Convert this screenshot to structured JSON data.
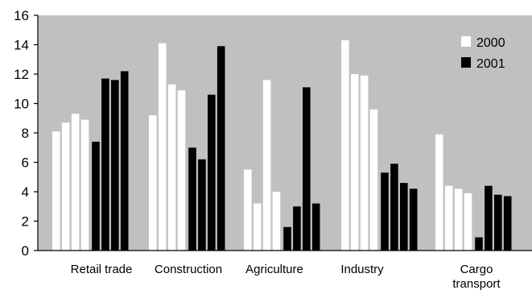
{
  "chart_data": {
    "type": "bar",
    "title": "",
    "xlabel": "",
    "ylabel": "",
    "ylim": [
      0,
      16
    ],
    "yticks": [
      0,
      2,
      4,
      6,
      8,
      10,
      12,
      14,
      16
    ],
    "grid": false,
    "legend_position": "top-right",
    "plot_background": "#c0c0c0",
    "categories": [
      {
        "label_lines": [
          "Retail trade"
        ]
      },
      {
        "label_lines": [
          "Construction"
        ]
      },
      {
        "label_lines": [
          "Agriculture"
        ]
      },
      {
        "label_lines": [
          "Industry"
        ]
      },
      {
        "label_lines": [
          "Cargo",
          "transport"
        ]
      }
    ],
    "series": [
      {
        "name": "2000",
        "color": "#ffffff",
        "values": [
          [
            8.1,
            8.7,
            9.3,
            8.9
          ],
          [
            9.2,
            14.1,
            11.3,
            10.9
          ],
          [
            5.5,
            3.2,
            11.6,
            4.0
          ],
          [
            14.3,
            12.0,
            11.9,
            9.6
          ],
          [
            7.9,
            4.4,
            4.2,
            3.9
          ]
        ]
      },
      {
        "name": "2001",
        "color": "#000000",
        "values": [
          [
            7.4,
            11.7,
            11.6,
            12.2
          ],
          [
            7.0,
            6.2,
            10.6,
            13.9
          ],
          [
            1.6,
            3.0,
            11.1,
            3.2
          ],
          [
            5.3,
            5.9,
            4.6,
            4.2
          ],
          [
            0.9,
            4.4,
            3.8,
            3.7
          ]
        ]
      }
    ]
  }
}
